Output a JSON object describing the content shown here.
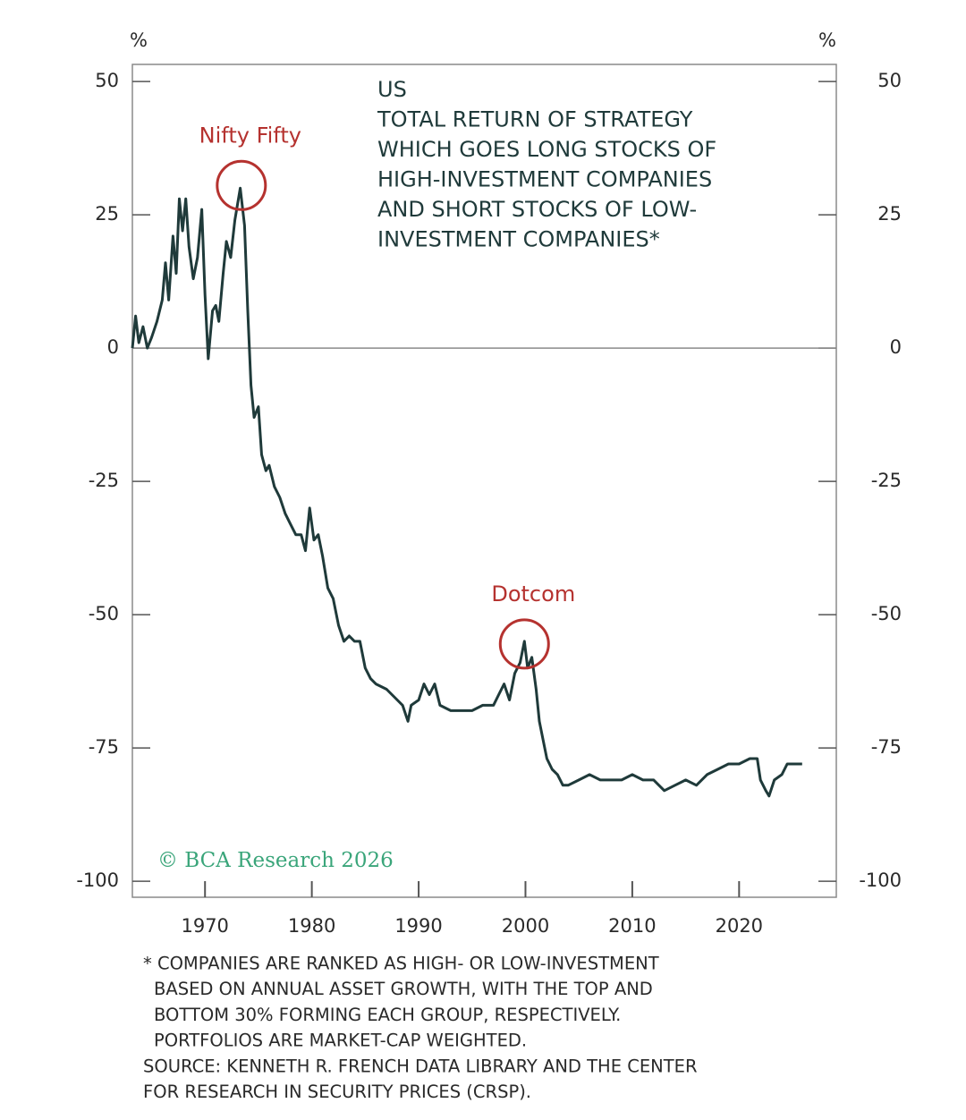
{
  "chart_data": {
    "type": "line",
    "title": [
      "US",
      "TOTAL RETURN OF STRATEGY",
      "WHICH GOES LONG STOCKS OF",
      "HIGH-INVESTMENT COMPANIES",
      "AND SHORT STOCKS OF LOW-",
      "INVESTMENT COMPANIES*"
    ],
    "y_label": "%",
    "y2_label": "%",
    "x": [
      1963.2,
      1963.5,
      1963.8,
      1964.2,
      1964.6,
      1965.0,
      1965.5,
      1966.0,
      1966.3,
      1966.6,
      1967.0,
      1967.3,
      1967.6,
      1967.9,
      1968.2,
      1968.5,
      1968.9,
      1969.3,
      1969.7,
      1970.0,
      1970.3,
      1970.7,
      1971.0,
      1971.3,
      1971.7,
      1972.0,
      1972.4,
      1972.8,
      1973.3,
      1973.7,
      1974.0,
      1974.3,
      1974.6,
      1975.0,
      1975.3,
      1975.7,
      1976.0,
      1976.5,
      1977.0,
      1977.5,
      1978.0,
      1978.5,
      1979.0,
      1979.4,
      1979.8,
      1980.2,
      1980.6,
      1981.0,
      1981.5,
      1982.0,
      1982.5,
      1983.0,
      1983.5,
      1984.0,
      1984.5,
      1985.0,
      1985.5,
      1986.0,
      1987.0,
      1988.0,
      1988.5,
      1989.0,
      1989.3,
      1990.0,
      1990.5,
      1991.0,
      1991.5,
      1992.0,
      1993.0,
      1994.0,
      1995.0,
      1996.0,
      1997.0,
      1997.5,
      1998.0,
      1998.5,
      1999.0,
      1999.5,
      1999.9,
      2000.2,
      2000.6,
      2001.0,
      2001.3,
      2001.7,
      2002.0,
      2002.5,
      2003.0,
      2003.5,
      2004.0,
      2005.0,
      2006.0,
      2007.0,
      2008.0,
      2009.0,
      2010.0,
      2011.0,
      2012.0,
      2013.0,
      2014.0,
      2015.0,
      2016.0,
      2017.0,
      2018.0,
      2019.0,
      2020.0,
      2021.0,
      2021.7,
      2022.0,
      2022.5,
      2022.8,
      2023.3,
      2024.0,
      2024.5,
      2025.0,
      2025.5,
      2025.9
    ],
    "values": [
      0,
      6,
      1,
      4,
      0,
      2,
      5,
      9,
      16,
      9,
      21,
      14,
      28,
      22,
      28,
      19,
      13,
      17,
      26,
      10,
      -2,
      7,
      8,
      5,
      14,
      20,
      17,
      24,
      30,
      23,
      7,
      -7,
      -13,
      -11,
      -20,
      -23,
      -22,
      -26,
      -28,
      -31,
      -33,
      -35,
      -35,
      -38,
      -30,
      -36,
      -35,
      -39,
      -45,
      -47,
      -52,
      -55,
      -54,
      -55,
      -55,
      -60,
      -62,
      -63,
      -64,
      -66,
      -67,
      -70,
      -67,
      -66,
      -63,
      -65,
      -63,
      -67,
      -68,
      -68,
      -68,
      -67,
      -67,
      -65,
      -63,
      -66,
      -61,
      -59,
      -55,
      -60,
      -58,
      -64,
      -70,
      -74,
      -77,
      -79,
      -80,
      -82,
      -82,
      -81,
      -80,
      -81,
      -81,
      -81,
      -80,
      -81,
      -81,
      -83,
      -82,
      -81,
      -82,
      -80,
      -79,
      -78,
      -78,
      -77,
      -77,
      -81,
      -83,
      -84,
      -81,
      -80,
      -78,
      -78,
      -78,
      -78
    ],
    "color": "#1f3a3a",
    "xlim": [
      1963.2,
      2029.1
    ],
    "xticks": [
      1970,
      1980,
      1990,
      2000,
      2010,
      2020
    ],
    "ylim": [
      -103,
      53.2
    ],
    "yticks": [
      50,
      25,
      0,
      -25,
      -50,
      -75,
      -100
    ],
    "y2lim": [
      -103,
      53.2
    ],
    "y2ticks": [
      50,
      25,
      0,
      -25,
      -50,
      -75,
      -100
    ],
    "reference_line": 0,
    "annotations": [
      {
        "text": "Nifty Fifty",
        "x": 1973.4,
        "y": 30.5
      },
      {
        "text": "Dotcom",
        "x": 1999.9,
        "y": -55.5
      }
    ],
    "annotation_color": "#b5322f",
    "watermark": "© BCA Research 2026",
    "notes": [
      "* COMPANIES ARE RANKED AS HIGH- OR LOW-INVESTMENT",
      "BASED ON ANNUAL ASSET GROWTH, WITH THE TOP AND",
      "BOTTOM 30% FORMING EACH GROUP, RESPECTIVELY.",
      "PORTFOLIOS ARE MARKET-CAP WEIGHTED."
    ],
    "source": [
      "SOURCE: KENNETH R. FRENCH DATA LIBRARY AND THE CENTER",
      "FOR RESEARCH IN SECURITY PRICES (CRSP)."
    ]
  }
}
